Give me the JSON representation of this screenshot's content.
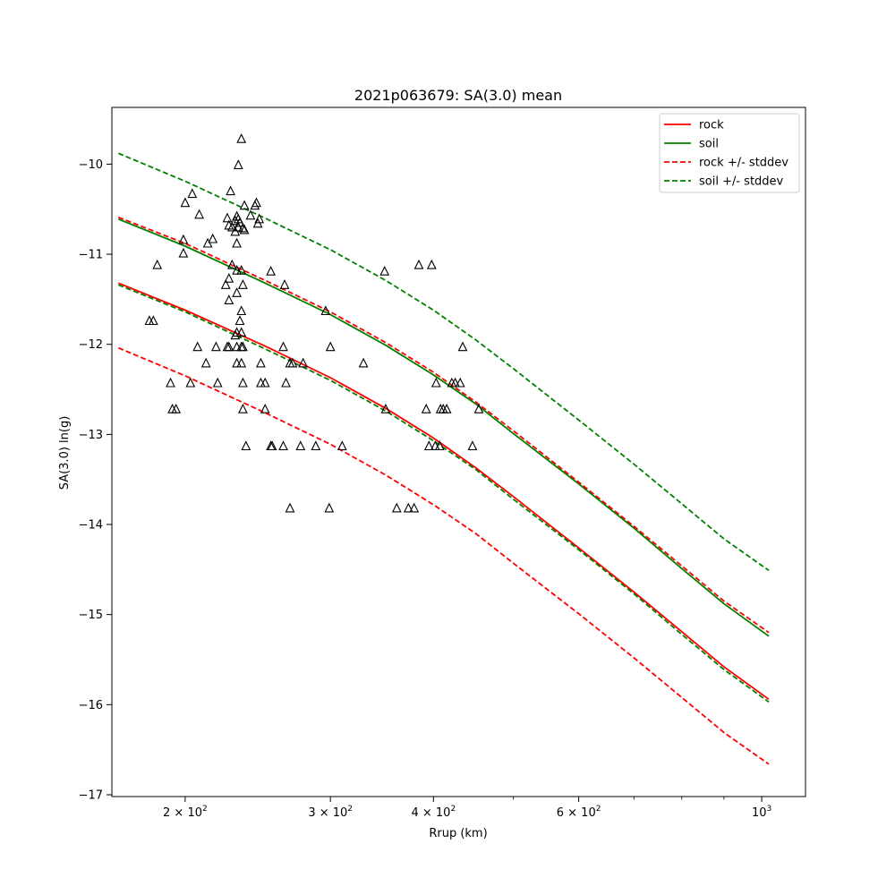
{
  "chart_data": {
    "type": "scatter",
    "title": "2021p063679: SA(3.0) mean",
    "xlabel": "Rrup (km)",
    "ylabel": "SA(3.0) ln(g)",
    "xscale": "log",
    "xlim": [
      163,
      1130
    ],
    "ylim": [
      -17.02,
      -9.37
    ],
    "grid": false,
    "legend_position": "top-right",
    "x_ticks": [
      {
        "value": 200,
        "base": "2",
        "exp": "2"
      },
      {
        "value": 300,
        "base": "3",
        "exp": "2"
      },
      {
        "value": 400,
        "base": "4",
        "exp": "2"
      },
      {
        "value": 600,
        "base": "6",
        "exp": "2"
      },
      {
        "value": 1000,
        "base": "10",
        "exp": "3"
      }
    ],
    "x_minor_ticks": [
      500,
      700,
      800,
      900
    ],
    "y_ticks": [
      {
        "value": -10,
        "label": "−10"
      },
      {
        "value": -11,
        "label": "−11"
      },
      {
        "value": -12,
        "label": "−12"
      },
      {
        "value": -13,
        "label": "−13"
      },
      {
        "value": -14,
        "label": "−14"
      },
      {
        "value": -15,
        "label": "−15"
      },
      {
        "value": -16,
        "label": "−16"
      },
      {
        "value": -17,
        "label": "−17"
      }
    ],
    "lines": [
      {
        "name": "rock",
        "color": "#ff0000",
        "dash": "solid",
        "points": [
          [
            166,
            -11.32
          ],
          [
            200,
            -11.62
          ],
          [
            250,
            -12.02
          ],
          [
            300,
            -12.37
          ],
          [
            350,
            -12.71
          ],
          [
            400,
            -13.04
          ],
          [
            450,
            -13.37
          ],
          [
            500,
            -13.69
          ],
          [
            600,
            -14.26
          ],
          [
            700,
            -14.75
          ],
          [
            800,
            -15.19
          ],
          [
            900,
            -15.58
          ],
          [
            1020,
            -15.94
          ]
        ]
      },
      {
        "name": "soil",
        "color": "#008000",
        "dash": "solid",
        "points": [
          [
            166,
            -10.61
          ],
          [
            200,
            -10.91
          ],
          [
            250,
            -11.32
          ],
          [
            300,
            -11.67
          ],
          [
            350,
            -12.01
          ],
          [
            400,
            -12.34
          ],
          [
            450,
            -12.66
          ],
          [
            500,
            -12.99
          ],
          [
            600,
            -13.55
          ],
          [
            700,
            -14.04
          ],
          [
            800,
            -14.49
          ],
          [
            900,
            -14.88
          ],
          [
            1020,
            -15.24
          ]
        ]
      },
      {
        "name": "rock +/- stddev",
        "color": "#ff0000",
        "dash": "dashed",
        "points": [
          [
            166,
            -10.59
          ],
          [
            200,
            -10.88
          ],
          [
            250,
            -11.29
          ],
          [
            300,
            -11.64
          ],
          [
            350,
            -11.98
          ],
          [
            400,
            -12.31
          ],
          [
            450,
            -12.64
          ],
          [
            500,
            -12.96
          ],
          [
            600,
            -13.53
          ],
          [
            700,
            -14.02
          ],
          [
            800,
            -14.46
          ],
          [
            900,
            -14.85
          ],
          [
            1020,
            -15.2
          ]
        ]
      },
      {
        "name": "rock +/- stddev",
        "color": "#ff0000",
        "dash": "dashed",
        "legend": false,
        "points": [
          [
            166,
            -12.04
          ],
          [
            200,
            -12.35
          ],
          [
            250,
            -12.76
          ],
          [
            300,
            -13.11
          ],
          [
            350,
            -13.45
          ],
          [
            400,
            -13.78
          ],
          [
            450,
            -14.1
          ],
          [
            500,
            -14.43
          ],
          [
            600,
            -14.99
          ],
          [
            700,
            -15.48
          ],
          [
            800,
            -15.92
          ],
          [
            900,
            -16.31
          ],
          [
            1020,
            -16.66
          ]
        ]
      },
      {
        "name": "soil +/- stddev",
        "color": "#008000",
        "dash": "dashed",
        "points": [
          [
            166,
            -9.88
          ],
          [
            200,
            -10.19
          ],
          [
            250,
            -10.6
          ],
          [
            300,
            -10.95
          ],
          [
            350,
            -11.29
          ],
          [
            400,
            -11.62
          ],
          [
            450,
            -11.95
          ],
          [
            500,
            -12.27
          ],
          [
            600,
            -12.84
          ],
          [
            700,
            -13.33
          ],
          [
            800,
            -13.77
          ],
          [
            900,
            -14.16
          ],
          [
            1020,
            -14.51
          ]
        ]
      },
      {
        "name": "soil +/- stddev",
        "color": "#008000",
        "dash": "dashed",
        "legend": false,
        "points": [
          [
            166,
            -11.34
          ],
          [
            200,
            -11.64
          ],
          [
            250,
            -12.05
          ],
          [
            300,
            -12.4
          ],
          [
            350,
            -12.74
          ],
          [
            400,
            -13.07
          ],
          [
            450,
            -13.39
          ],
          [
            500,
            -13.72
          ],
          [
            600,
            -14.28
          ],
          [
            700,
            -14.77
          ],
          [
            800,
            -15.22
          ],
          [
            900,
            -15.61
          ],
          [
            1020,
            -15.97
          ]
        ]
      }
    ],
    "legend": [
      {
        "label": "rock",
        "color": "#ff0000",
        "dash": "solid"
      },
      {
        "label": "soil",
        "color": "#008000",
        "dash": "solid"
      },
      {
        "label": "rock +/- stddev",
        "color": "#ff0000",
        "dash": "dashed"
      },
      {
        "label": "soil +/- stddev",
        "color": "#008000",
        "dash": "dashed"
      }
    ],
    "observations": {
      "marker": "triangle-open",
      "color": "#000000",
      "points": [
        [
          234,
          -9.72
        ],
        [
          232,
          -10.01
        ],
        [
          227,
          -10.3
        ],
        [
          204,
          -10.33
        ],
        [
          200,
          -10.43
        ],
        [
          236,
          -10.46
        ],
        [
          244,
          -10.43
        ],
        [
          243,
          -10.46
        ],
        [
          208,
          -10.56
        ],
        [
          231,
          -10.58
        ],
        [
          240,
          -10.57
        ],
        [
          225,
          -10.6
        ],
        [
          232,
          -10.61
        ],
        [
          246,
          -10.61
        ],
        [
          230,
          -10.63
        ],
        [
          233,
          -10.65
        ],
        [
          245,
          -10.66
        ],
        [
          226,
          -10.68
        ],
        [
          228,
          -10.7
        ],
        [
          232,
          -10.7
        ],
        [
          235,
          -10.71
        ],
        [
          236,
          -10.73
        ],
        [
          230,
          -10.75
        ],
        [
          216,
          -10.83
        ],
        [
          199,
          -10.84
        ],
        [
          213,
          -10.88
        ],
        [
          231,
          -10.88
        ],
        [
          199,
          -10.99
        ],
        [
          185,
          -11.12
        ],
        [
          228,
          -11.12
        ],
        [
          384,
          -11.12
        ],
        [
          398,
          -11.12
        ],
        [
          231,
          -11.18
        ],
        [
          234,
          -11.18
        ],
        [
          254,
          -11.19
        ],
        [
          349,
          -11.19
        ],
        [
          226,
          -11.27
        ],
        [
          224,
          -11.34
        ],
        [
          235,
          -11.34
        ],
        [
          264,
          -11.34
        ],
        [
          231,
          -11.43
        ],
        [
          226,
          -11.51
        ],
        [
          234,
          -11.63
        ],
        [
          296,
          -11.63
        ],
        [
          181,
          -11.74
        ],
        [
          183,
          -11.74
        ],
        [
          233,
          -11.74
        ],
        [
          231,
          -11.87
        ],
        [
          234,
          -11.87
        ],
        [
          230,
          -11.9
        ],
        [
          207,
          -12.03
        ],
        [
          218,
          -12.03
        ],
        [
          225,
          -12.03
        ],
        [
          226,
          -12.03
        ],
        [
          231,
          -12.03
        ],
        [
          234,
          -12.03
        ],
        [
          235,
          -12.03
        ],
        [
          263,
          -12.03
        ],
        [
          300,
          -12.03
        ],
        [
          434,
          -12.03
        ],
        [
          212,
          -12.21
        ],
        [
          231,
          -12.21
        ],
        [
          234,
          -12.21
        ],
        [
          247,
          -12.21
        ],
        [
          268,
          -12.21
        ],
        [
          270,
          -12.21
        ],
        [
          278,
          -12.21
        ],
        [
          329,
          -12.21
        ],
        [
          192,
          -12.43
        ],
        [
          203,
          -12.43
        ],
        [
          219,
          -12.43
        ],
        [
          235,
          -12.43
        ],
        [
          247,
          -12.43
        ],
        [
          250,
          -12.43
        ],
        [
          265,
          -12.43
        ],
        [
          403,
          -12.43
        ],
        [
          421,
          -12.43
        ],
        [
          425,
          -12.43
        ],
        [
          431,
          -12.43
        ],
        [
          193,
          -12.72
        ],
        [
          195,
          -12.72
        ],
        [
          235,
          -12.72
        ],
        [
          250,
          -12.72
        ],
        [
          350,
          -12.72
        ],
        [
          392,
          -12.72
        ],
        [
          408,
          -12.72
        ],
        [
          411,
          -12.72
        ],
        [
          415,
          -12.72
        ],
        [
          454,
          -12.72
        ],
        [
          237,
          -13.13
        ],
        [
          254,
          -13.13
        ],
        [
          255,
          -13.13
        ],
        [
          263,
          -13.13
        ],
        [
          276,
          -13.13
        ],
        [
          288,
          -13.13
        ],
        [
          310,
          -13.13
        ],
        [
          395,
          -13.13
        ],
        [
          402,
          -13.13
        ],
        [
          407,
          -13.13
        ],
        [
          446,
          -13.13
        ],
        [
          268,
          -13.82
        ],
        [
          299,
          -13.82
        ],
        [
          361,
          -13.82
        ],
        [
          373,
          -13.82
        ],
        [
          379,
          -13.82
        ]
      ]
    }
  }
}
